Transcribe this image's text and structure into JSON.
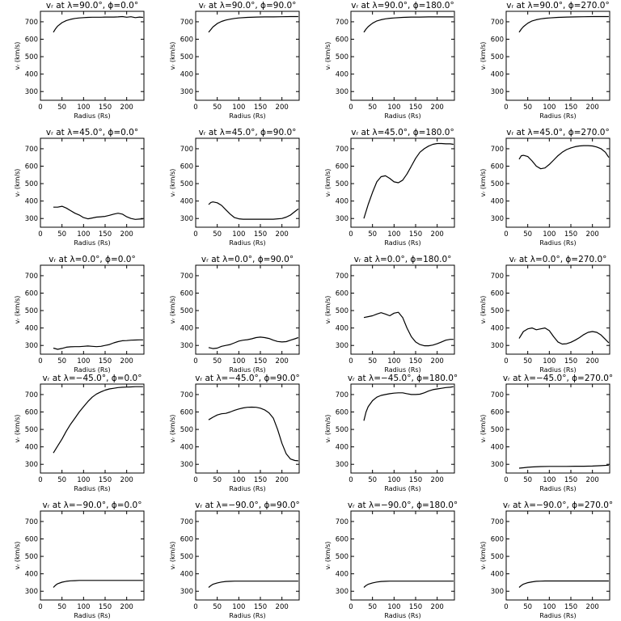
{
  "chart_data": {
    "type": "line",
    "layout": {
      "rows": 5,
      "cols": 4
    },
    "common": {
      "xlabel": "Radius (Rs)",
      "ylabel": "vᵣ (km/s)",
      "xlim": [
        0,
        240
      ],
      "ylim": [
        250,
        760
      ],
      "xticks": [
        0,
        50,
        100,
        150,
        200
      ],
      "yticks": [
        300,
        400,
        500,
        600,
        700
      ],
      "grid": false
    },
    "panels": [
      {
        "title": "vᵣ at λ=90.0°, ϕ=0.0°",
        "x": [
          30,
          35,
          40,
          50,
          60,
          70,
          80,
          90,
          100,
          110,
          120,
          130,
          140,
          150,
          160,
          170,
          180,
          190,
          200,
          210,
          220,
          230,
          238
        ],
        "y": [
          640,
          660,
          675,
          695,
          707,
          714,
          719,
          722,
          724,
          725,
          726,
          726,
          726,
          727,
          727,
          727,
          728,
          730,
          726,
          729,
          724,
          727,
          725
        ]
      },
      {
        "title": "vᵣ at λ=90.0°, ϕ=90.0°",
        "x": [
          30,
          35,
          40,
          50,
          60,
          70,
          80,
          90,
          100,
          120,
          140,
          160,
          180,
          200,
          220,
          238
        ],
        "y": [
          640,
          655,
          670,
          690,
          702,
          710,
          715,
          719,
          722,
          725,
          727,
          728,
          728,
          729,
          730,
          730
        ]
      },
      {
        "title": "vᵣ at λ=90.0°, ϕ=180.0°",
        "x": [
          30,
          35,
          40,
          50,
          60,
          70,
          80,
          90,
          100,
          120,
          140,
          160,
          180,
          200,
          220,
          238
        ],
        "y": [
          640,
          658,
          672,
          692,
          705,
          712,
          717,
          720,
          722,
          725,
          727,
          727,
          728,
          728,
          728,
          728
        ]
      },
      {
        "title": "vᵣ at λ=90.0°, ϕ=270.0°",
        "x": [
          30,
          35,
          40,
          50,
          60,
          70,
          80,
          90,
          100,
          120,
          140,
          160,
          180,
          200,
          220,
          238
        ],
        "y": [
          640,
          658,
          672,
          692,
          705,
          712,
          717,
          720,
          722,
          725,
          727,
          728,
          729,
          730,
          730,
          730
        ]
      },
      {
        "title": "vᵣ at λ=45.0°, ϕ=0.0°",
        "x": [
          30,
          40,
          50,
          60,
          70,
          80,
          90,
          100,
          110,
          120,
          130,
          140,
          150,
          160,
          170,
          180,
          190,
          200,
          210,
          220,
          230,
          238
        ],
        "y": [
          365,
          365,
          370,
          360,
          345,
          330,
          320,
          305,
          298,
          303,
          308,
          310,
          312,
          318,
          325,
          330,
          325,
          310,
          300,
          295,
          297,
          298
        ]
      },
      {
        "title": "vᵣ at λ=45.0°, ϕ=90.0°",
        "x": [
          30,
          35,
          40,
          50,
          60,
          70,
          80,
          90,
          100,
          110,
          120,
          140,
          160,
          180,
          200,
          210,
          220,
          230,
          238
        ],
        "y": [
          380,
          392,
          395,
          390,
          375,
          350,
          325,
          305,
          298,
          296,
          296,
          296,
          296,
          296,
          300,
          308,
          320,
          340,
          355
        ]
      },
      {
        "title": "vᵣ at λ=45.0°, ϕ=180.0°",
        "x": [
          30,
          40,
          50,
          60,
          70,
          80,
          90,
          100,
          110,
          120,
          130,
          140,
          150,
          160,
          170,
          180,
          190,
          200,
          210,
          220,
          230,
          238
        ],
        "y": [
          300,
          380,
          450,
          510,
          540,
          545,
          530,
          510,
          505,
          520,
          555,
          600,
          645,
          680,
          700,
          715,
          725,
          730,
          730,
          728,
          728,
          725
        ]
      },
      {
        "title": "vᵣ at λ=45.0°, ϕ=270.0°",
        "x": [
          30,
          35,
          40,
          50,
          60,
          70,
          80,
          90,
          100,
          110,
          120,
          130,
          140,
          150,
          160,
          170,
          180,
          190,
          200,
          210,
          220,
          230,
          238
        ],
        "y": [
          640,
          660,
          662,
          655,
          630,
          600,
          585,
          590,
          610,
          635,
          660,
          680,
          695,
          705,
          712,
          716,
          718,
          718,
          716,
          710,
          700,
          680,
          650
        ]
      },
      {
        "title": "vᵣ at λ=0.0°, ϕ=0.0°",
        "x": [
          30,
          40,
          50,
          60,
          70,
          80,
          90,
          100,
          110,
          120,
          130,
          140,
          150,
          160,
          170,
          180,
          190,
          200,
          210,
          220,
          230,
          238
        ],
        "y": [
          285,
          278,
          283,
          290,
          292,
          293,
          293,
          295,
          297,
          295,
          293,
          295,
          300,
          305,
          315,
          322,
          327,
          328,
          330,
          331,
          332,
          332
        ]
      },
      {
        "title": "vᵣ at λ=0.0°, ϕ=90.0°",
        "x": [
          30,
          40,
          50,
          60,
          70,
          80,
          90,
          100,
          110,
          120,
          130,
          140,
          150,
          160,
          170,
          180,
          190,
          200,
          210,
          220,
          230,
          238
        ],
        "y": [
          288,
          282,
          285,
          295,
          300,
          305,
          315,
          325,
          330,
          333,
          338,
          345,
          348,
          345,
          340,
          330,
          323,
          320,
          322,
          330,
          338,
          345
        ]
      },
      {
        "title": "vᵣ at λ=0.0°, ϕ=180.0°",
        "x": [
          30,
          40,
          50,
          60,
          70,
          80,
          90,
          100,
          110,
          120,
          130,
          140,
          150,
          160,
          170,
          180,
          190,
          200,
          210,
          220,
          230,
          238
        ],
        "y": [
          460,
          465,
          470,
          480,
          488,
          480,
          470,
          485,
          490,
          460,
          400,
          350,
          320,
          305,
          298,
          298,
          302,
          310,
          320,
          330,
          335,
          335
        ]
      },
      {
        "title": "vᵣ at λ=0.0°, ϕ=270.0°",
        "x": [
          30,
          40,
          50,
          60,
          70,
          80,
          90,
          100,
          110,
          120,
          130,
          140,
          150,
          160,
          170,
          180,
          190,
          200,
          210,
          220,
          230,
          238
        ],
        "y": [
          340,
          380,
          395,
          400,
          390,
          395,
          400,
          385,
          350,
          320,
          308,
          310,
          318,
          330,
          345,
          362,
          375,
          380,
          375,
          360,
          335,
          315
        ]
      },
      {
        "title": "vᵣ at λ=−45.0°, ϕ=0.0°",
        "x": [
          30,
          40,
          50,
          60,
          70,
          80,
          90,
          100,
          110,
          120,
          130,
          140,
          150,
          160,
          170,
          180,
          190,
          200,
          210,
          220,
          230,
          238
        ],
        "y": [
          365,
          405,
          445,
          490,
          530,
          565,
          600,
          630,
          660,
          685,
          703,
          715,
          725,
          732,
          736,
          740,
          742,
          743,
          744,
          745,
          745,
          745
        ]
      },
      {
        "title": "vᵣ at λ=−45.0°, ϕ=90.0°",
        "x": [
          30,
          40,
          50,
          60,
          70,
          80,
          90,
          100,
          110,
          120,
          130,
          140,
          150,
          160,
          170,
          180,
          190,
          200,
          210,
          220,
          230,
          238
        ],
        "y": [
          555,
          570,
          583,
          590,
          592,
          600,
          610,
          617,
          623,
          627,
          628,
          627,
          622,
          612,
          595,
          565,
          500,
          420,
          360,
          330,
          322,
          320
        ]
      },
      {
        "title": "vᵣ at λ=−45.0°, ϕ=180.0°",
        "x": [
          30,
          35,
          40,
          50,
          60,
          70,
          80,
          90,
          100,
          110,
          120,
          130,
          140,
          150,
          160,
          170,
          180,
          190,
          200,
          210,
          220,
          230,
          238
        ],
        "y": [
          550,
          600,
          630,
          665,
          685,
          695,
          700,
          705,
          708,
          710,
          710,
          705,
          700,
          700,
          702,
          710,
          720,
          728,
          732,
          736,
          740,
          742,
          745
        ]
      },
      {
        "title": "vᵣ at λ=−45.0°, ϕ=270.0°",
        "x": [
          30,
          40,
          50,
          60,
          80,
          100,
          120,
          140,
          160,
          180,
          200,
          220,
          238
        ],
        "y": [
          278,
          280,
          283,
          285,
          287,
          288,
          288,
          288,
          289,
          289,
          290,
          292,
          295
        ]
      },
      {
        "title": "vᵣ at λ=−90.0°, ϕ=0.0°",
        "x": [
          30,
          35,
          40,
          50,
          60,
          70,
          80,
          90,
          100,
          120,
          140,
          160,
          180,
          200,
          220,
          238
        ],
        "y": [
          322,
          335,
          343,
          352,
          357,
          360,
          361,
          362,
          362,
          362,
          362,
          362,
          362,
          362,
          362,
          362
        ]
      },
      {
        "title": "vᵣ at λ=−90.0°, ϕ=90.0°",
        "x": [
          30,
          35,
          40,
          50,
          60,
          70,
          80,
          90,
          100,
          120,
          140,
          160,
          180,
          200,
          220,
          238
        ],
        "y": [
          322,
          332,
          340,
          348,
          353,
          356,
          357,
          358,
          358,
          358,
          358,
          358,
          358,
          358,
          358,
          358
        ]
      },
      {
        "title": "vᵣ at λ=−90.0°, ϕ=180.0°",
        "x": [
          30,
          35,
          40,
          50,
          60,
          70,
          80,
          90,
          100,
          120,
          140,
          160,
          180,
          200,
          220,
          238
        ],
        "y": [
          322,
          333,
          340,
          348,
          353,
          356,
          357,
          358,
          358,
          358,
          358,
          358,
          358,
          358,
          358,
          358
        ]
      },
      {
        "title": "vᵣ at λ=−90.0°, ϕ=270.0°",
        "x": [
          30,
          35,
          40,
          50,
          60,
          70,
          80,
          90,
          100,
          120,
          140,
          160,
          180,
          200,
          220,
          238
        ],
        "y": [
          322,
          333,
          341,
          349,
          354,
          357,
          358,
          359,
          359,
          359,
          359,
          359,
          359,
          359,
          359,
          359
        ]
      }
    ]
  }
}
